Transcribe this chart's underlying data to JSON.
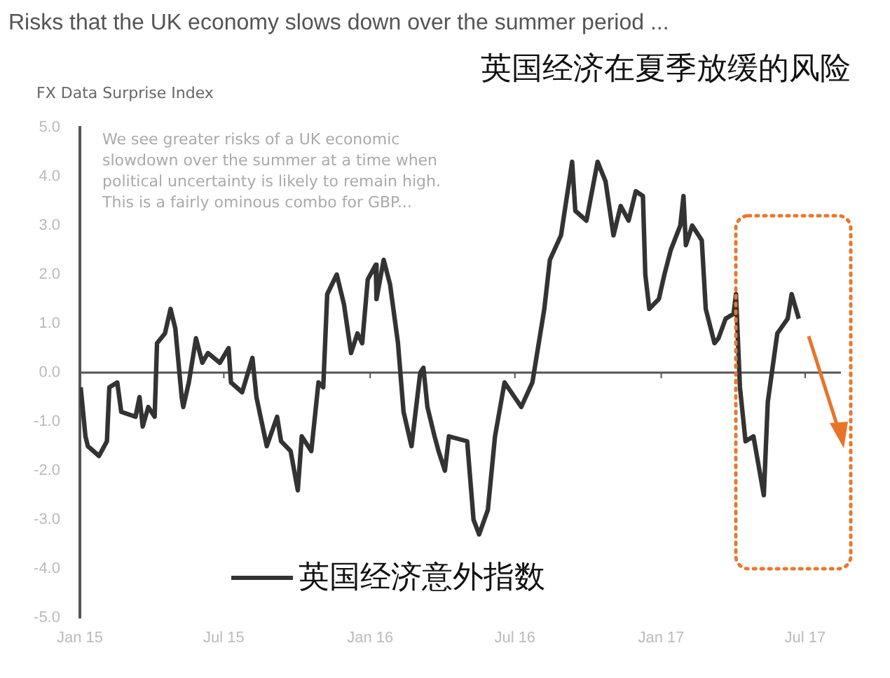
{
  "chart_data": {
    "type": "line",
    "title": "Risks that the UK economy slows down over the summer period ...",
    "subtitle": "英国经济在夏季放缓的风险",
    "ylabel": "FX Data Surprise Index",
    "annotations": [
      "We see greater risks of a UK economic slowdown over the summer at a time when political uncertainty is likely to remain high. This is a fairly ominous combo for GBP..."
    ],
    "x": [
      "2015-01-02",
      "2015-01-08",
      "2015-01-11",
      "2015-01-25",
      "2015-02-04",
      "2015-02-07",
      "2015-02-17",
      "2015-02-22",
      "2015-03-12",
      "2015-03-17",
      "2015-03-21",
      "2015-03-28",
      "2015-04-05",
      "2015-04-08",
      "2015-04-18",
      "2015-04-25",
      "2015-05-01",
      "2015-05-09",
      "2015-05-11",
      "2015-05-18",
      "2015-05-27",
      "2015-06-04",
      "2015-06-11",
      "2015-06-26",
      "2015-07-07",
      "2015-07-10",
      "2015-07-24",
      "2015-08-06",
      "2015-08-11",
      "2015-08-24",
      "2015-09-06",
      "2015-09-11",
      "2015-09-23",
      "2015-10-02",
      "2015-10-07",
      "2015-10-19",
      "2015-10-28",
      "2015-11-03",
      "2015-11-08",
      "2015-11-20",
      "2015-11-29",
      "2015-12-08",
      "2015-12-16",
      "2015-12-22",
      "2015-12-29",
      "2016-01-08",
      "2016-01-09",
      "2016-01-18",
      "2016-01-26",
      "2016-02-05",
      "2016-02-12",
      "2016-02-22",
      "2016-03-04",
      "2016-03-08",
      "2016-03-13",
      "2016-03-22",
      "2016-03-27",
      "2016-04-04",
      "2016-04-09",
      "2016-05-02",
      "2016-05-10",
      "2016-05-17",
      "2016-05-28",
      "2016-06-06",
      "2016-06-18",
      "2016-07-09",
      "2016-07-23",
      "2016-08-07",
      "2016-08-14",
      "2016-08-28",
      "2016-09-11",
      "2016-09-15",
      "2016-09-29",
      "2016-10-13",
      "2016-10-23",
      "2016-11-02",
      "2016-11-11",
      "2016-11-21",
      "2016-11-30",
      "2016-12-09",
      "2016-12-12",
      "2016-12-17",
      "2016-12-29",
      "2017-01-05",
      "2017-01-13",
      "2017-01-25",
      "2017-01-29",
      "2017-02-01",
      "2017-02-09",
      "2017-02-21",
      "2017-02-26",
      "2017-03-09",
      "2017-03-14",
      "2017-03-23",
      "2017-04-02",
      "2017-04-05",
      "2017-04-10",
      "2017-04-17",
      "2017-04-27",
      "2017-05-10",
      "2017-05-15",
      "2017-05-27",
      "2017-06-09",
      "2017-06-14",
      "2017-06-23"
    ],
    "series": [
      {
        "name": "英国经济意外指数",
        "color": "#333333",
        "values": [
          -0.3,
          -1.3,
          -1.5,
          -1.7,
          -1.4,
          -0.3,
          -0.2,
          -0.8,
          -0.9,
          -0.5,
          -1.1,
          -0.7,
          -0.9,
          0.6,
          0.8,
          1.3,
          0.9,
          -0.5,
          -0.7,
          -0.2,
          0.7,
          0.2,
          0.4,
          0.2,
          0.5,
          -0.2,
          -0.4,
          0.3,
          -0.5,
          -1.5,
          -0.9,
          -1.4,
          -1.6,
          -2.4,
          -1.3,
          -1.6,
          -0.2,
          -0.3,
          1.6,
          2.0,
          1.4,
          0.4,
          0.8,
          0.6,
          1.9,
          2.2,
          1.5,
          2.3,
          1.8,
          0.6,
          -0.8,
          -1.5,
          0.0,
          0.1,
          -0.7,
          -1.3,
          -1.6,
          -2.0,
          -1.3,
          -1.4,
          -3.0,
          -3.3,
          -2.8,
          -1.3,
          -0.2,
          -0.7,
          -0.2,
          1.3,
          2.3,
          2.8,
          4.3,
          3.3,
          3.1,
          4.3,
          3.9,
          2.8,
          3.4,
          3.1,
          3.7,
          3.6,
          2.0,
          1.3,
          1.5,
          2.0,
          2.5,
          3.0,
          3.6,
          2.6,
          3.0,
          2.7,
          1.3,
          0.6,
          0.7,
          1.1,
          1.2,
          1.6,
          -0.3,
          -1.4,
          -1.3,
          -2.5,
          -0.6,
          0.8,
          1.1,
          1.6,
          1.1
        ]
      }
    ],
    "xlim": [
      "2015-01-01",
      "2017-08-15"
    ],
    "xticks": [
      {
        "value": "2015-01-01",
        "label": "Jan 15"
      },
      {
        "value": "2015-07-01",
        "label": "Jul 15"
      },
      {
        "value": "2016-01-01",
        "label": "Jan 16"
      },
      {
        "value": "2016-07-01",
        "label": "Jul 16"
      },
      {
        "value": "2017-01-01",
        "label": "Jan 17"
      },
      {
        "value": "2017-07-01",
        "label": "Jul 17"
      }
    ],
    "ylim": [
      -5,
      5
    ],
    "yticks": [
      {
        "value": -5,
        "label": "-5.0"
      },
      {
        "value": -4,
        "label": "-4.0"
      },
      {
        "value": -3,
        "label": "-3.0"
      },
      {
        "value": -2,
        "label": "-2.0"
      },
      {
        "value": -1,
        "label": "-1.0"
      },
      {
        "value": 0,
        "label": "0.0"
      },
      {
        "value": 1,
        "label": "1.0"
      },
      {
        "value": 2,
        "label": "2.0"
      },
      {
        "value": 3,
        "label": "3.0"
      },
      {
        "value": 4,
        "label": "4.0"
      },
      {
        "value": 5,
        "label": "5.0"
      }
    ],
    "ref_lines": [
      {
        "axis": "y",
        "value": 0,
        "color": "#555555"
      }
    ],
    "grid": false,
    "legend": "bottom",
    "marker": "none",
    "line_style": "solid"
  }
}
